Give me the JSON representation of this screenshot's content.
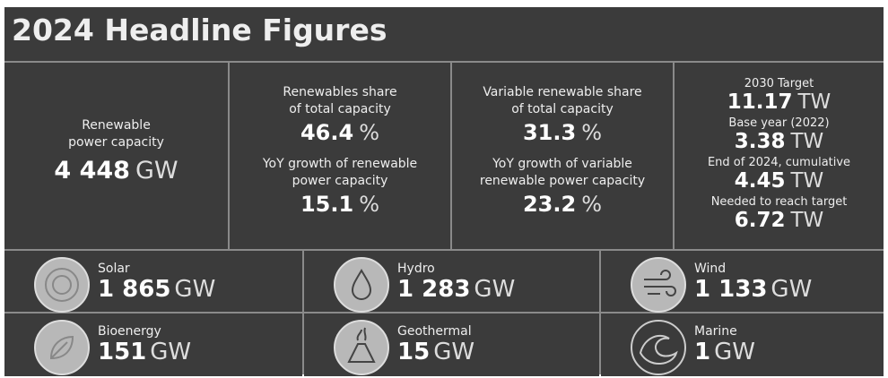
{
  "title": "2024 Headline Figures",
  "top": [
    {
      "items": [
        {
          "label": [
            "Renewable",
            "power capacity"
          ],
          "value": "4 448",
          "unit": "GW"
        }
      ]
    },
    {
      "items": [
        {
          "label": [
            "Renewables share",
            "of total capacity"
          ],
          "value": "46.4",
          "unit": "%"
        },
        {
          "label": [
            "YoY growth of renewable",
            "power capacity"
          ],
          "value": "15.1",
          "unit": "%"
        }
      ]
    },
    {
      "items": [
        {
          "label": [
            "Variable renewable share",
            "of total capacity"
          ],
          "value": "31.3",
          "unit": "%"
        },
        {
          "label": [
            "YoY growth of variable",
            "renewable power capacity"
          ],
          "value": "23.2",
          "unit": "%"
        }
      ]
    },
    {
      "items": [
        {
          "label": [
            "2030 Target"
          ],
          "value": "11.17",
          "unit": "TW"
        },
        {
          "label": [
            "Base year (2022)"
          ],
          "value": "3.38",
          "unit": "TW"
        },
        {
          "label": [
            "End of 2024, cumulative"
          ],
          "value": "4.45",
          "unit": "TW"
        },
        {
          "label": [
            "Needed to reach target"
          ],
          "value": "6.72",
          "unit": "TW"
        }
      ]
    }
  ],
  "technologies": [
    {
      "name": "Solar",
      "value": "1 865",
      "unit": "GW"
    },
    {
      "name": "Hydro",
      "value": "1 283",
      "unit": "GW"
    },
    {
      "name": "Wind",
      "value": "1 133",
      "unit": "GW"
    },
    {
      "name": "Bioenergy",
      "value": "151",
      "unit": "GW"
    },
    {
      "name": "Geothermal",
      "value": "15",
      "unit": "GW"
    },
    {
      "name": "Marine",
      "value": "1",
      "unit": "GW"
    }
  ]
}
